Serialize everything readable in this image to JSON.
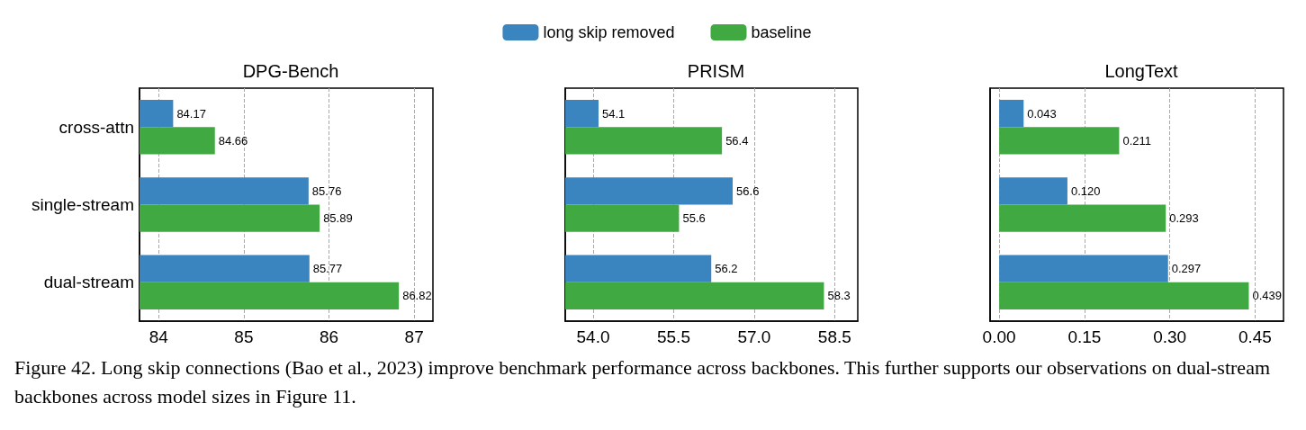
{
  "chart_data": [
    {
      "type": "bar",
      "orientation": "horizontal",
      "title": "DPG-Bench",
      "categories": [
        "cross-attn",
        "single-stream",
        "dual-stream"
      ],
      "xlim": [
        83.775,
        87.22
      ],
      "xticks": [
        84,
        85,
        86,
        87
      ],
      "grid": "x",
      "series": [
        {
          "color": "#3a84bf",
          "values": [
            84.17,
            85.76,
            85.77
          ],
          "value_labels": [
            "84.17",
            "85.76",
            "85.77"
          ]
        },
        {
          "color": "#41a941",
          "values": [
            84.66,
            85.89,
            86.82
          ],
          "value_labels": [
            "84.66",
            "85.89",
            "86.82"
          ]
        }
      ],
      "annotations": [
        "Figure 42. Long skip connections (Bao et al., 2023) improve benchmark performance across backbones. This further supports our observations on dual-stream backbones across model sizes in Figure 11."
      ]
    },
    {
      "type": "bar",
      "orientation": "horizontal",
      "title": "PRISM",
      "categories": [
        null,
        null,
        null
      ],
      "xlim": [
        53.48,
        58.93
      ],
      "xticks": [
        {
          "value": 54,
          "label": "54.0"
        },
        {
          "value": 55.5,
          "label": "55.5"
        },
        {
          "value": 57,
          "label": "57.0"
        },
        {
          "value": 58.5,
          "label": "58.5"
        }
      ],
      "grid": "x",
      "tick_labels": "x",
      "legend": "top",
      "series": [
        {
          "name": "long skip removed",
          "color": "#3a84bf",
          "values": [
            54.1,
            56.6,
            56.2
          ],
          "value_labels": [
            "54.1",
            "56.6",
            "56.2"
          ]
        },
        {
          "name": "baseline",
          "color": "#41a941",
          "values": [
            56.4,
            55.6,
            58.3
          ],
          "value_labels": [
            "56.4",
            "55.6",
            "58.3"
          ]
        }
      ]
    },
    {
      "type": "bar",
      "orientation": "horizontal",
      "title": "LongText",
      "categories": [
        null,
        null,
        null
      ],
      "xlim": [
        -0.016,
        0.5
      ],
      "xticks": [
        {
          "value": 0,
          "label": "0.00"
        },
        {
          "value": 0.15,
          "label": "0.15"
        },
        {
          "value": 0.3,
          "label": "0.30"
        },
        {
          "value": 0.45,
          "label": "0.45"
        }
      ],
      "grid": "x",
      "tick_labels": "x",
      "series": [
        {
          "color": "#3a84bf",
          "values": [
            0.043,
            0.12,
            0.297
          ],
          "value_labels": [
            "0.043",
            "0.120",
            "0.297"
          ]
        },
        {
          "color": "#41a941",
          "values": [
            0.211,
            0.293,
            0.439
          ],
          "value_labels": [
            "0.211",
            "0.293",
            "0.439"
          ]
        }
      ]
    }
  ]
}
